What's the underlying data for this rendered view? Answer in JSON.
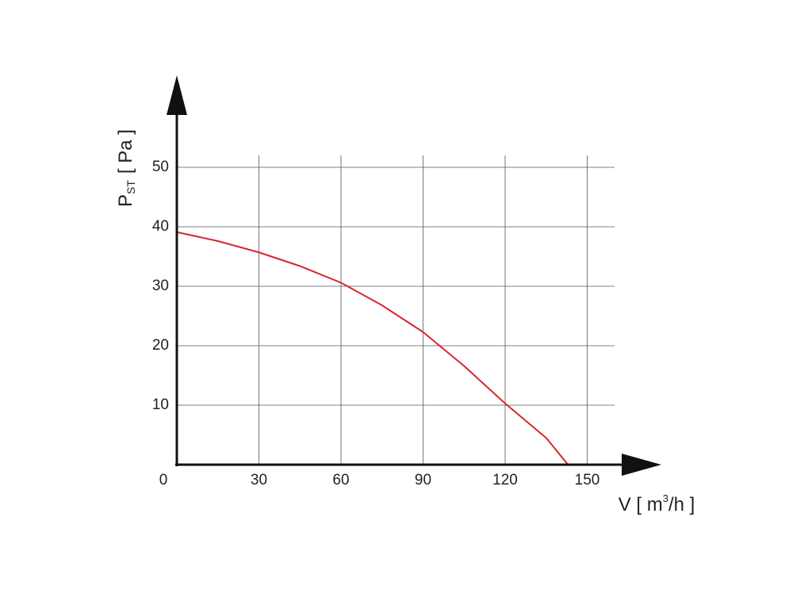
{
  "chart_data": {
    "type": "line",
    "ylabel": {
      "main": "P",
      "sub": "ST",
      "unit": "[ Pa ]"
    },
    "xlabel": {
      "main": "V [ m",
      "sup": "3",
      "unit": "/h ]"
    },
    "x": [
      0,
      15,
      30,
      45,
      60,
      75,
      90,
      105,
      120,
      135,
      143
    ],
    "series": [
      {
        "color": "#d7262c",
        "values": [
          39.1,
          37.6,
          35.7,
          33.4,
          30.6,
          26.8,
          22.3,
          16.6,
          10.3,
          4.5,
          0
        ]
      }
    ],
    "xlim": [
      0,
      160
    ],
    "xticks": [
      0,
      30,
      60,
      90,
      120,
      150
    ],
    "ylim": [
      0,
      52
    ],
    "yticks": [
      10,
      20,
      30,
      40,
      50
    ],
    "grid": true
  }
}
